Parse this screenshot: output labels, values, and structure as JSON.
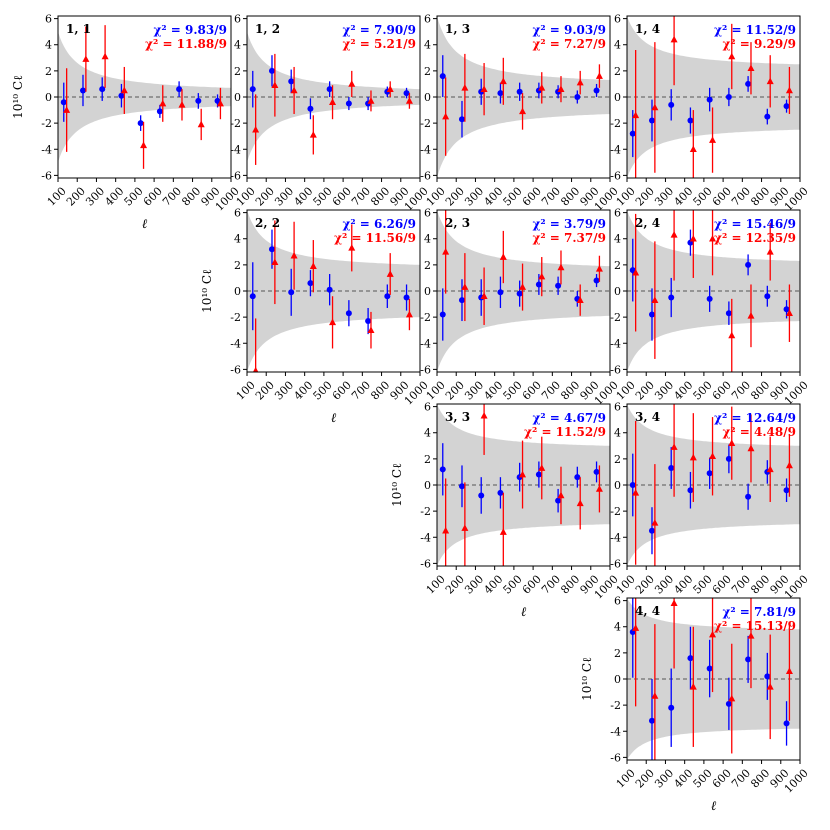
{
  "figure": {
    "ylabel": "10¹⁰ Cℓ",
    "xlabel": "ℓ",
    "colors": {
      "series_blue": "#0000ff",
      "series_red": "#ff0000",
      "band": "#d3d3d3",
      "zero_line": "#555555"
    }
  },
  "chart_data": [
    {
      "type": "scatter",
      "panel": "1,1",
      "label": "1, 1",
      "chi2_blue": "χ² = 9.83/9",
      "chi2_red": "χ² = 11.88/9",
      "xlim": [
        100,
        1000
      ],
      "ylim": [
        -6.2,
        6.2
      ],
      "xticks": [
        100,
        200,
        300,
        400,
        500,
        600,
        700,
        800,
        900,
        1000
      ],
      "yticks": [
        -6,
        -4,
        -2,
        0,
        2,
        4,
        6
      ],
      "band_at_100": 5.0,
      "band_at_1000": 0.7,
      "series": [
        {
          "color": "blue",
          "x": [
            130,
            230,
            330,
            430,
            530,
            630,
            730,
            830,
            930
          ],
          "y": [
            -0.4,
            0.5,
            0.6,
            0.1,
            -2.0,
            -1.1,
            0.6,
            -0.3,
            -0.3
          ],
          "err": [
            1.5,
            1.2,
            0.9,
            0.9,
            0.6,
            0.5,
            0.6,
            0.6,
            0.5
          ]
        },
        {
          "color": "red",
          "x": [
            145,
            245,
            345,
            445,
            545,
            645,
            745,
            845,
            945
          ],
          "y": [
            -1.0,
            2.9,
            3.1,
            0.5,
            -3.7,
            -0.5,
            -0.6,
            -2.1,
            -0.5
          ],
          "err": [
            3.2,
            2.5,
            2.4,
            1.8,
            1.8,
            1.4,
            1.2,
            1.2,
            1.2
          ]
        }
      ]
    },
    {
      "type": "scatter",
      "panel": "1,2",
      "label": "1, 2",
      "chi2_blue": "χ² = 7.90/9",
      "chi2_red": "χ² = 5.21/9",
      "xlim": [
        100,
        1000
      ],
      "ylim": [
        -6.2,
        6.2
      ],
      "xticks": [
        100,
        200,
        300,
        400,
        500,
        600,
        700,
        800,
        900,
        1000
      ],
      "yticks": [
        -6,
        -4,
        -2,
        0,
        2,
        4,
        6
      ],
      "band_at_100": 5.0,
      "band_at_1000": 0.6,
      "series": [
        {
          "color": "blue",
          "x": [
            130,
            230,
            330,
            430,
            530,
            630,
            730,
            830,
            930
          ],
          "y": [
            0.6,
            2.0,
            1.2,
            -0.9,
            0.6,
            -0.5,
            -0.5,
            0.4,
            0.3
          ],
          "err": [
            1.4,
            1.2,
            0.9,
            0.8,
            0.6,
            0.5,
            0.5,
            0.4,
            0.4
          ]
        },
        {
          "color": "red",
          "x": [
            145,
            245,
            345,
            445,
            545,
            645,
            745,
            845,
            945
          ],
          "y": [
            -2.5,
            0.9,
            0.5,
            -2.9,
            -0.4,
            1.0,
            -0.3,
            0.6,
            -0.3
          ],
          "err": [
            2.7,
            2.4,
            1.8,
            1.5,
            1.3,
            1.0,
            0.8,
            0.6,
            0.6
          ]
        }
      ]
    },
    {
      "type": "scatter",
      "panel": "1,3",
      "label": "1, 3",
      "chi2_blue": "χ² = 9.03/9",
      "chi2_red": "χ² = 7.27/9",
      "xlim": [
        100,
        1000
      ],
      "ylim": [
        -6.2,
        6.2
      ],
      "xticks": [
        100,
        200,
        300,
        400,
        500,
        600,
        700,
        800,
        900,
        1000
      ],
      "yticks": [
        -6,
        -4,
        -2,
        0,
        2,
        4,
        6
      ],
      "band_at_100": 6.2,
      "band_at_1000": 1.3,
      "series": [
        {
          "color": "blue",
          "x": [
            130,
            230,
            330,
            430,
            530,
            630,
            730,
            830,
            930
          ],
          "y": [
            1.6,
            -1.7,
            0.4,
            0.3,
            0.4,
            0.5,
            0.4,
            0.0,
            0.5
          ],
          "err": [
            1.6,
            1.4,
            1.0,
            0.8,
            0.7,
            0.6,
            0.5,
            0.5,
            0.5
          ]
        },
        {
          "color": "red",
          "x": [
            145,
            245,
            345,
            445,
            545,
            645,
            745,
            845,
            945
          ],
          "y": [
            -1.5,
            0.7,
            0.6,
            1.2,
            -1.1,
            0.7,
            0.6,
            1.1,
            1.6
          ],
          "err": [
            3.0,
            2.6,
            2.0,
            1.8,
            1.4,
            1.2,
            1.0,
            0.9,
            0.9
          ]
        }
      ]
    },
    {
      "type": "scatter",
      "panel": "1,4",
      "label": "1, 4",
      "chi2_blue": "χ² = 11.52/9",
      "chi2_red": "χ² = 9.29/9",
      "xlim": [
        100,
        1000
      ],
      "ylim": [
        -6.2,
        6.2
      ],
      "xticks": [
        100,
        200,
        300,
        400,
        500,
        600,
        700,
        800,
        900,
        1000
      ],
      "yticks": [
        -6,
        -4,
        -2,
        0,
        2,
        4,
        6
      ],
      "band_at_100": 6.2,
      "band_at_1000": 2.5,
      "series": [
        {
          "color": "blue",
          "x": [
            130,
            230,
            330,
            430,
            530,
            630,
            730,
            830,
            930
          ],
          "y": [
            -2.8,
            -1.8,
            -0.6,
            -1.8,
            -0.2,
            0.0,
            1.0,
            -1.5,
            -0.7
          ],
          "err": [
            1.8,
            1.6,
            1.2,
            1.0,
            0.9,
            0.7,
            0.6,
            0.6,
            0.5
          ]
        },
        {
          "color": "red",
          "x": [
            145,
            245,
            345,
            445,
            545,
            645,
            745,
            845,
            945
          ],
          "y": [
            -1.4,
            -0.8,
            4.4,
            -4.0,
            -3.3,
            3.1,
            2.2,
            1.2,
            0.5
          ],
          "err": [
            5.0,
            5.0,
            3.5,
            3.0,
            2.5,
            2.5,
            2.0,
            2.0,
            1.8
          ]
        }
      ]
    },
    {
      "type": "scatter",
      "panel": "2,2",
      "label": "2, 2",
      "chi2_blue": "χ² = 6.26/9",
      "chi2_red": "χ² = 11.56/9",
      "xlim": [
        100,
        1000
      ],
      "ylim": [
        -6.2,
        6.2
      ],
      "xticks": [
        100,
        200,
        300,
        400,
        500,
        600,
        700,
        800,
        900,
        1000
      ],
      "yticks": [
        -6,
        -4,
        -2,
        0,
        2,
        4,
        6
      ],
      "band_at_100": 6.2,
      "band_at_1000": 2.0,
      "series": [
        {
          "color": "blue",
          "x": [
            130,
            230,
            330,
            430,
            530,
            630,
            730,
            830,
            930
          ],
          "y": [
            -0.4,
            3.2,
            -0.1,
            0.6,
            0.1,
            -1.7,
            -2.3,
            -0.4,
            -0.5
          ],
          "err": [
            2.6,
            1.5,
            1.8,
            1.0,
            1.2,
            1.0,
            1.0,
            0.9,
            1.0
          ]
        },
        {
          "color": "red",
          "x": [
            145,
            245,
            345,
            445,
            545,
            645,
            745,
            845,
            945
          ],
          "y": [
            -6.1,
            2.2,
            2.7,
            1.9,
            -2.4,
            3.3,
            -3.0,
            1.3,
            -1.8
          ],
          "err": [
            4.0,
            3.2,
            2.6,
            2.0,
            2.0,
            1.8,
            1.4,
            1.6,
            1.2
          ]
        }
      ]
    },
    {
      "type": "scatter",
      "panel": "2,3",
      "label": "2, 3",
      "chi2_blue": "χ² = 3.79/9",
      "chi2_red": "χ² = 7.37/9",
      "xlim": [
        100,
        1000
      ],
      "ylim": [
        -6.2,
        6.2
      ],
      "xticks": [
        100,
        200,
        300,
        400,
        500,
        600,
        700,
        800,
        900,
        1000
      ],
      "yticks": [
        -6,
        -4,
        -2,
        0,
        2,
        4,
        6
      ],
      "band_at_100": 6.2,
      "band_at_1000": 1.9,
      "series": [
        {
          "color": "blue",
          "x": [
            130,
            230,
            330,
            430,
            530,
            630,
            730,
            830,
            930
          ],
          "y": [
            -1.8,
            -0.7,
            -0.5,
            -0.1,
            -0.2,
            0.5,
            0.4,
            -0.6,
            0.8
          ],
          "err": [
            2.0,
            1.6,
            1.4,
            1.2,
            1.0,
            0.8,
            0.7,
            0.6,
            0.5
          ]
        },
        {
          "color": "red",
          "x": [
            145,
            245,
            345,
            445,
            545,
            645,
            745,
            845,
            945
          ],
          "y": [
            3.0,
            0.3,
            -0.4,
            2.6,
            0.3,
            1.1,
            1.8,
            -0.7,
            1.7
          ],
          "err": [
            3.2,
            2.6,
            2.2,
            2.0,
            1.8,
            1.5,
            1.3,
            1.2,
            1.0
          ]
        }
      ]
    },
    {
      "type": "scatter",
      "panel": "2,4",
      "label": "2, 4",
      "chi2_blue": "χ² = 15.46/9",
      "chi2_red": "χ² = 12.35/9",
      "xlim": [
        100,
        1000
      ],
      "ylim": [
        -6.2,
        6.2
      ],
      "xticks": [
        100,
        200,
        300,
        400,
        500,
        600,
        700,
        800,
        900,
        1000
      ],
      "yticks": [
        -6,
        -4,
        -2,
        0,
        2,
        4,
        6
      ],
      "band_at_100": 6.2,
      "band_at_1000": 2.3,
      "series": [
        {
          "color": "blue",
          "x": [
            130,
            230,
            330,
            430,
            530,
            630,
            730,
            830,
            930
          ],
          "y": [
            1.6,
            -1.8,
            -0.5,
            3.7,
            -0.6,
            -1.7,
            2.0,
            -0.4,
            -1.4
          ],
          "err": [
            2.4,
            2.0,
            1.5,
            1.0,
            1.0,
            0.9,
            0.8,
            0.8,
            0.7
          ]
        },
        {
          "color": "red",
          "x": [
            145,
            245,
            345,
            445,
            545,
            645,
            745,
            845,
            945
          ],
          "y": [
            1.4,
            -0.7,
            4.3,
            4.0,
            4.0,
            -3.4,
            -1.9,
            3.0,
            -1.7
          ],
          "err": [
            4.5,
            4.5,
            3.5,
            3.0,
            2.8,
            2.8,
            2.4,
            2.2,
            2.2
          ]
        }
      ]
    },
    {
      "type": "scatter",
      "panel": "3,3",
      "label": "3, 3",
      "chi2_blue": "χ² = 4.67/9",
      "chi2_red": "χ² = 11.52/9",
      "xlim": [
        100,
        1000
      ],
      "ylim": [
        -6.2,
        6.2
      ],
      "xticks": [
        100,
        200,
        300,
        400,
        500,
        600,
        700,
        800,
        900,
        1000
      ],
      "yticks": [
        -6,
        -4,
        -2,
        0,
        2,
        4,
        6
      ],
      "band_at_100": 6.2,
      "band_at_1000": 3.0,
      "series": [
        {
          "color": "blue",
          "x": [
            130,
            230,
            330,
            430,
            530,
            630,
            730,
            830,
            930
          ],
          "y": [
            1.2,
            -0.1,
            -0.8,
            -0.6,
            0.6,
            0.8,
            -1.2,
            0.6,
            1.0
          ],
          "err": [
            2.0,
            1.6,
            1.4,
            1.2,
            1.1,
            1.0,
            0.9,
            0.8,
            0.8
          ]
        },
        {
          "color": "red",
          "x": [
            145,
            245,
            345,
            445,
            545,
            645,
            745,
            845,
            945
          ],
          "y": [
            -3.5,
            -3.3,
            5.3,
            -3.6,
            0.8,
            1.3,
            -0.8,
            -1.4,
            -0.3
          ],
          "err": [
            4.0,
            3.5,
            3.0,
            3.0,
            2.6,
            2.4,
            2.2,
            2.0,
            1.8
          ]
        }
      ]
    },
    {
      "type": "scatter",
      "panel": "3,4",
      "label": "3, 4",
      "chi2_blue": "χ² = 12.64/9",
      "chi2_red": "χ² = 4.48/9",
      "xlim": [
        100,
        1000
      ],
      "ylim": [
        -6.2,
        6.2
      ],
      "xticks": [
        100,
        200,
        300,
        400,
        500,
        600,
        700,
        800,
        900,
        1000
      ],
      "yticks": [
        -6,
        -4,
        -2,
        0,
        2,
        4,
        6
      ],
      "band_at_100": 6.2,
      "band_at_1000": 3.0,
      "series": [
        {
          "color": "blue",
          "x": [
            130,
            230,
            330,
            430,
            530,
            630,
            730,
            830,
            930
          ],
          "y": [
            0.0,
            -3.5,
            1.3,
            -0.4,
            0.9,
            2.0,
            -0.9,
            1.0,
            -0.4
          ],
          "err": [
            2.4,
            1.8,
            1.6,
            1.4,
            1.2,
            1.1,
            1.0,
            0.9,
            0.9
          ]
        },
        {
          "color": "red",
          "x": [
            145,
            245,
            345,
            445,
            545,
            645,
            745,
            845,
            945
          ],
          "y": [
            -0.6,
            -2.9,
            2.9,
            2.1,
            2.2,
            3.2,
            2.8,
            1.2,
            1.5
          ],
          "err": [
            5.5,
            4.5,
            3.8,
            3.4,
            3.0,
            2.8,
            2.6,
            2.5,
            2.4
          ]
        }
      ]
    },
    {
      "type": "scatter",
      "panel": "4,4",
      "label": "4, 4",
      "chi2_blue": "χ² = 7.81/9",
      "chi2_red": "χ² = 15.13/9",
      "xlim": [
        100,
        1000
      ],
      "ylim": [
        -6.2,
        6.2
      ],
      "xticks": [
        100,
        200,
        300,
        400,
        500,
        600,
        700,
        800,
        900,
        1000
      ],
      "yticks": [
        -6,
        -4,
        -2,
        0,
        2,
        4,
        6
      ],
      "band_at_100": 6.2,
      "band_at_1000": 3.8,
      "series": [
        {
          "color": "blue",
          "x": [
            130,
            230,
            330,
            430,
            530,
            630,
            730,
            830,
            930
          ],
          "y": [
            3.6,
            -3.2,
            -2.2,
            1.6,
            0.8,
            -1.9,
            1.5,
            0.2,
            -3.4
          ],
          "err": [
            3.5,
            3.2,
            3.0,
            2.4,
            2.2,
            2.0,
            1.8,
            1.8,
            1.7
          ]
        },
        {
          "color": "red",
          "x": [
            145,
            245,
            345,
            445,
            545,
            645,
            745,
            845,
            945
          ],
          "y": [
            3.9,
            -1.3,
            5.8,
            -0.6,
            3.4,
            -1.5,
            3.3,
            -0.6,
            0.6
          ],
          "err": [
            6.0,
            5.5,
            5.0,
            4.6,
            4.4,
            4.2,
            4.0,
            4.0,
            3.8
          ]
        }
      ]
    }
  ]
}
